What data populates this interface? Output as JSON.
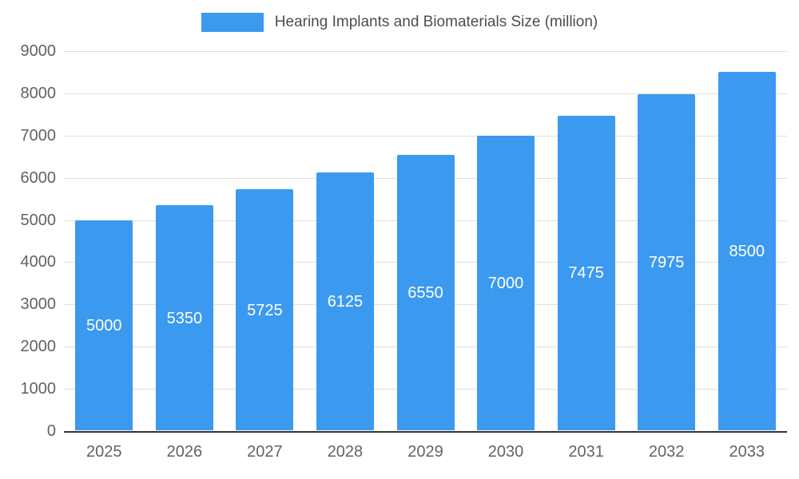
{
  "chart_data": {
    "type": "bar",
    "title": "Hearing Implants and Biomaterials Size (million)",
    "categories": [
      "2025",
      "2026",
      "2027",
      "2028",
      "2029",
      "2030",
      "2031",
      "2032",
      "2033"
    ],
    "values": [
      5000,
      5350,
      5725,
      6125,
      6550,
      7000,
      7475,
      7975,
      8500
    ],
    "value_labels": [
      "5000",
      "5350",
      "5725",
      "6125",
      "6550",
      "7000",
      "7475",
      "7975",
      "8500"
    ],
    "xlabel": "",
    "ylabel": "",
    "ylim": [
      0,
      9000
    ],
    "ytick_step": 1000,
    "ytick_labels": [
      "0",
      "1000",
      "2000",
      "3000",
      "4000",
      "5000",
      "6000",
      "7000",
      "8000",
      "9000"
    ],
    "grid": true,
    "legend_position": "top",
    "bar_color": "#3b99f0",
    "gridline_color": "#e0e0e0",
    "axis_line_color": "#333333",
    "tick_label_color": "#5f6368",
    "value_label_color": "#ffffff"
  }
}
